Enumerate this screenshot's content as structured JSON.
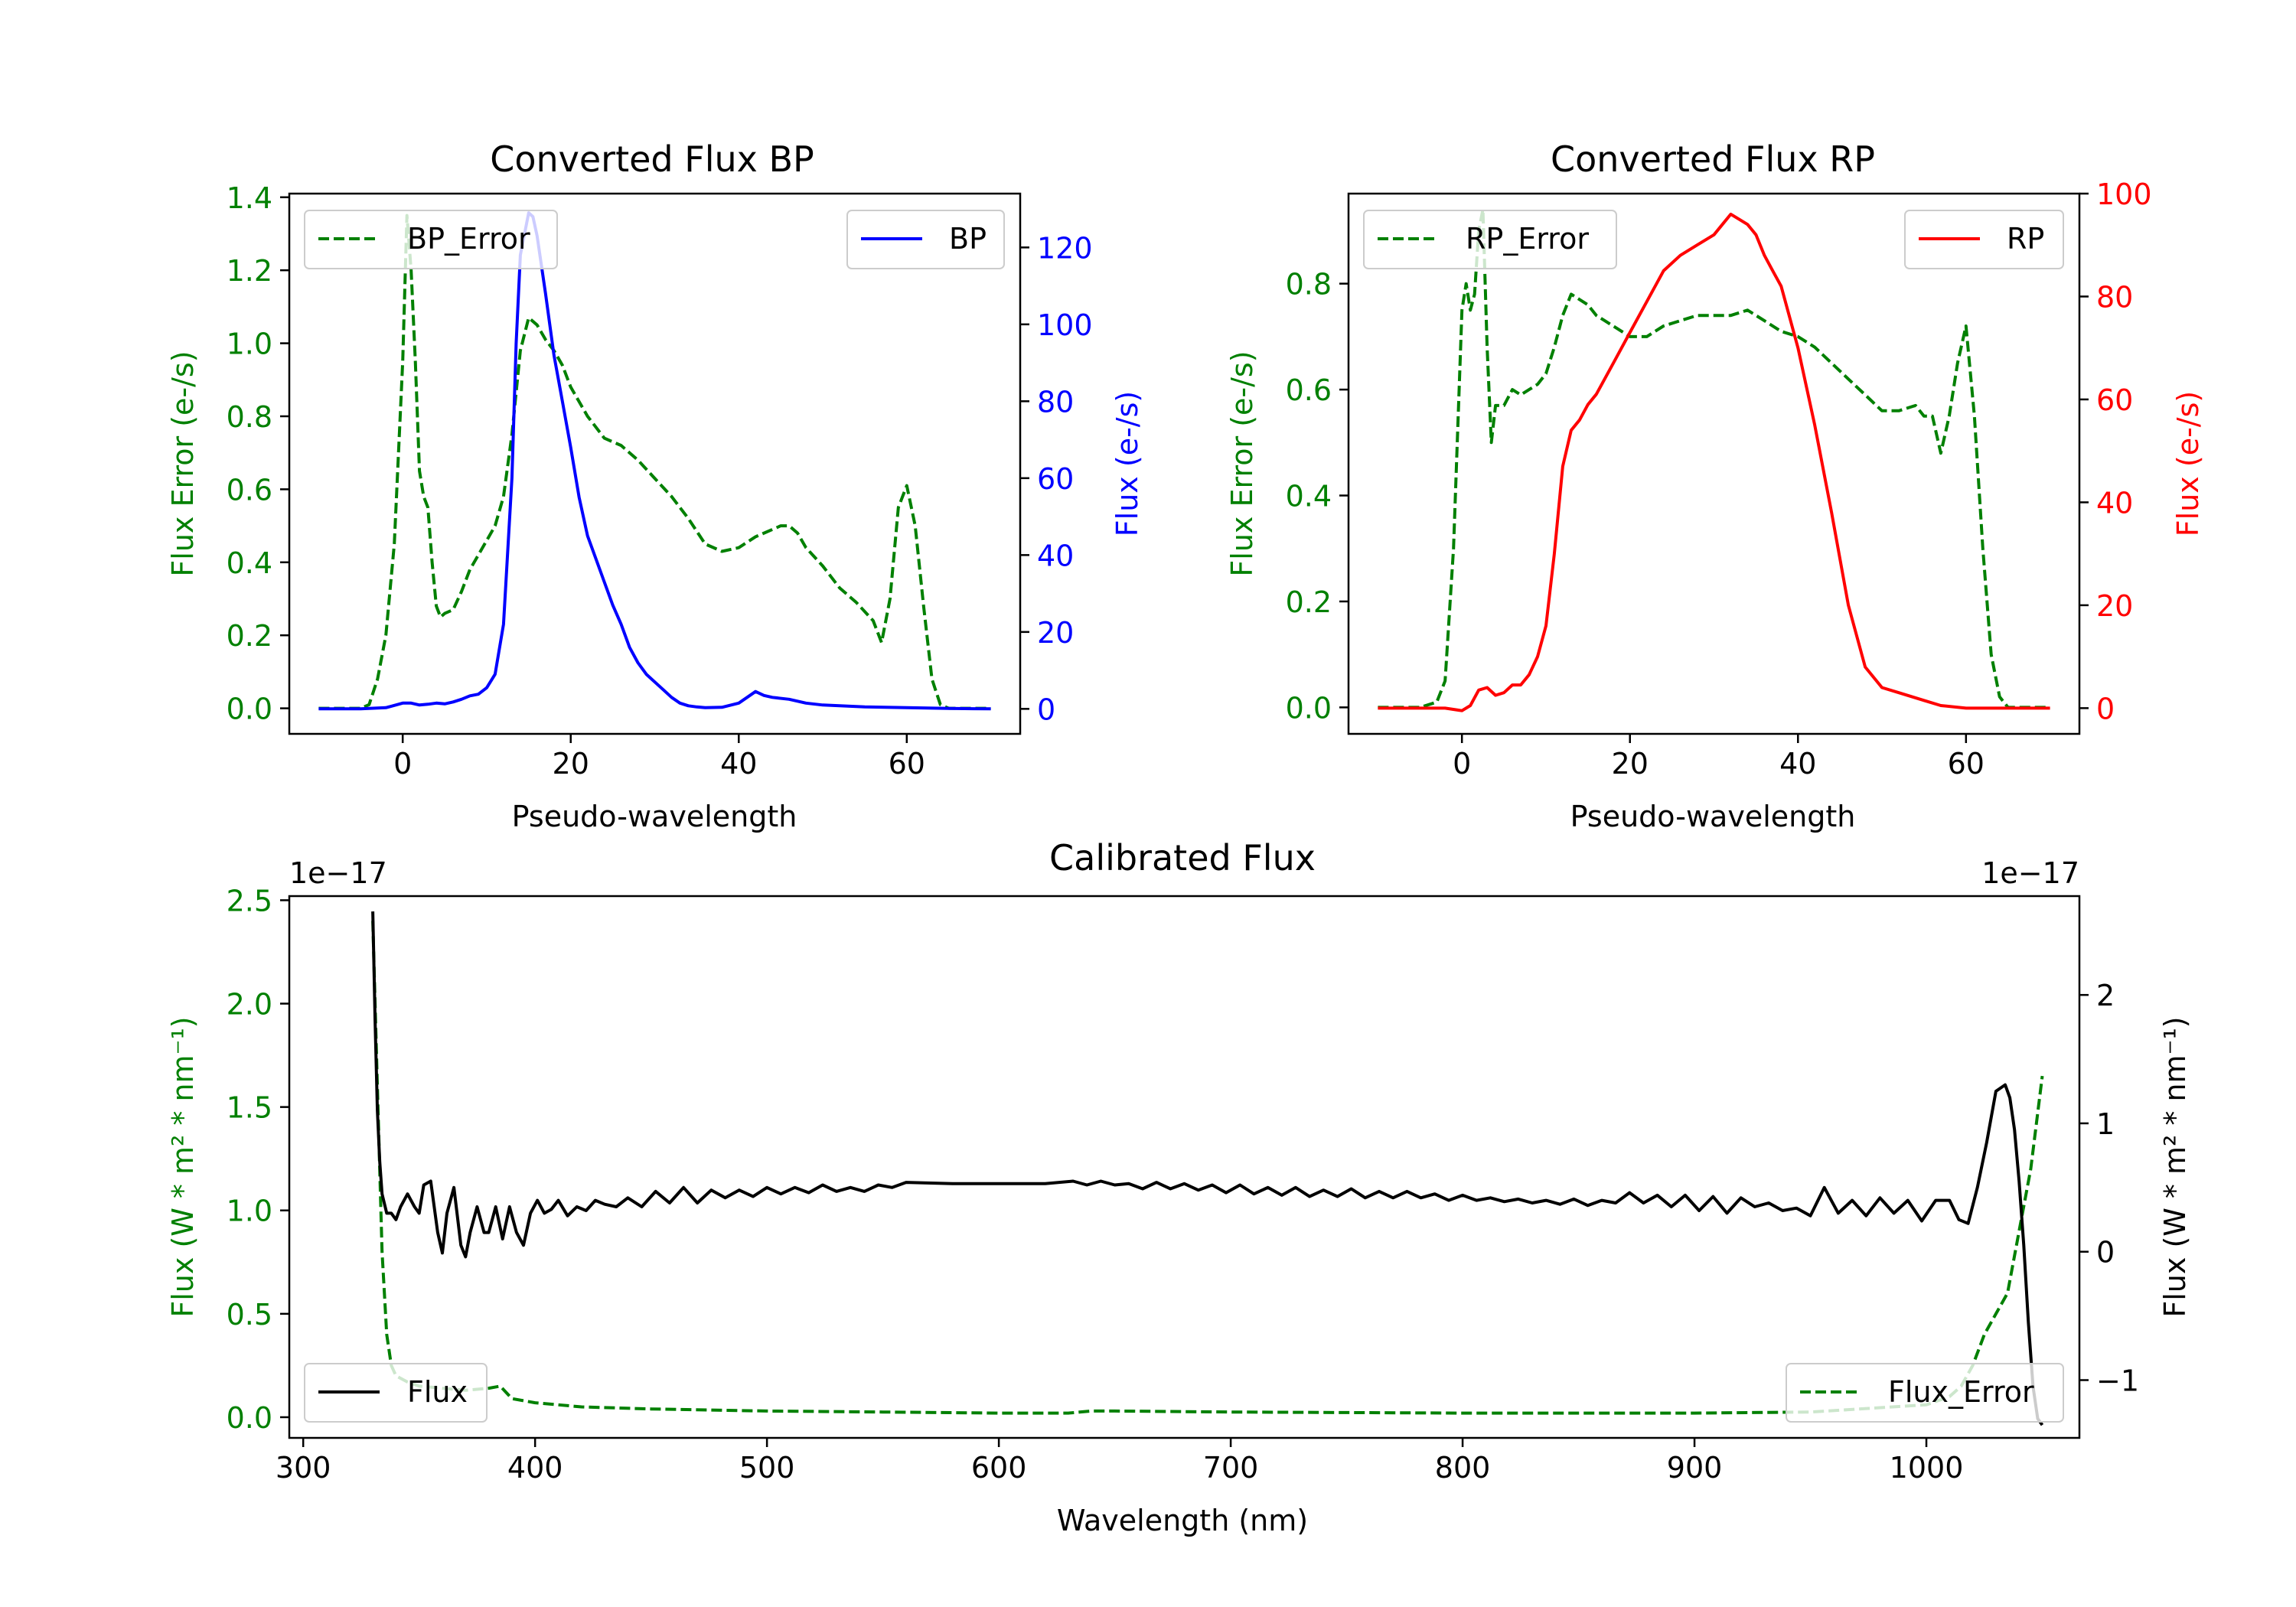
{
  "chart_data": [
    {
      "type": "line",
      "title": "Converted Flux BP",
      "xlabel": "Pseudo-wavelength",
      "ylabel_left": "Flux Error (e-/s)",
      "ylabel_right": "Flux (e-/s)",
      "xlim": [
        -13.5,
        73.5
      ],
      "ylim_left": [
        -0.07,
        1.41
      ],
      "ylim_right": [
        -6.5,
        134
      ],
      "xticks": [
        0,
        20,
        40,
        60
      ],
      "yticks_left": [
        "0.0",
        "0.2",
        "0.4",
        "0.6",
        "0.8",
        "1.0",
        "1.2",
        "1.4"
      ],
      "yticks_right": [
        "0",
        "20",
        "40",
        "60",
        "80",
        "100",
        "120"
      ],
      "legend_left": "BP_Error",
      "legend_right": "BP",
      "series": [
        {
          "name": "BP_Error",
          "axis": "left",
          "color": "#008000",
          "dash": "dashed",
          "x": [
            -10,
            -5,
            -4,
            -3,
            -2,
            -1,
            0,
            0.5,
            1,
            1.5,
            2,
            2.5,
            3,
            3.5,
            4,
            4.5,
            5,
            6,
            7,
            8,
            9,
            10,
            11,
            12,
            13,
            14,
            15,
            16,
            17,
            18,
            19,
            20,
            21,
            22,
            23,
            24,
            25,
            26,
            27,
            28,
            30,
            32,
            34,
            36,
            38,
            40,
            42,
            44,
            45,
            46,
            47,
            48,
            50,
            52,
            54,
            56,
            57,
            58,
            59,
            60,
            61,
            62,
            63,
            64,
            65,
            70
          ],
          "y": [
            0,
            0,
            0.01,
            0.08,
            0.2,
            0.45,
            0.95,
            1.35,
            1.2,
            0.95,
            0.65,
            0.58,
            0.55,
            0.4,
            0.28,
            0.25,
            0.26,
            0.27,
            0.32,
            0.38,
            0.42,
            0.46,
            0.5,
            0.58,
            0.75,
            0.98,
            1.07,
            1.05,
            1.01,
            0.98,
            0.94,
            0.88,
            0.84,
            0.8,
            0.77,
            0.74,
            0.73,
            0.72,
            0.7,
            0.68,
            0.63,
            0.58,
            0.52,
            0.45,
            0.43,
            0.44,
            0.47,
            0.49,
            0.5,
            0.5,
            0.48,
            0.44,
            0.39,
            0.33,
            0.29,
            0.24,
            0.18,
            0.3,
            0.55,
            0.61,
            0.5,
            0.28,
            0.08,
            0.01,
            0,
            0
          ]
        },
        {
          "name": "BP",
          "axis": "right",
          "color": "#0000ff",
          "dash": "solid",
          "x": [
            -10,
            -5,
            -2,
            0,
            1,
            2,
            3,
            4,
            5,
            6,
            7,
            8,
            9,
            10,
            11,
            12,
            13,
            13.5,
            14,
            15,
            15.5,
            16,
            17,
            18,
            19,
            20,
            21,
            22,
            23,
            24,
            25,
            26,
            27,
            28,
            29,
            30,
            31,
            32,
            33,
            34,
            35,
            36,
            38,
            40,
            41,
            42,
            43,
            44,
            46,
            48,
            50,
            55,
            60,
            65,
            70
          ],
          "y": [
            0,
            0,
            0.3,
            1.5,
            1.5,
            1,
            1.2,
            1.5,
            1.3,
            1.8,
            2.5,
            3.4,
            3.8,
            5.5,
            9,
            22,
            60,
            95,
            118,
            129,
            128,
            123,
            108,
            92,
            80,
            68,
            55,
            45,
            39,
            33,
            27,
            22,
            16,
            12,
            9,
            7,
            5,
            3,
            1.5,
            0.8,
            0.5,
            0.3,
            0.4,
            1.5,
            3,
            4.5,
            3.5,
            3,
            2.5,
            1.5,
            1,
            0.5,
            0.3,
            0.1,
            0
          ]
        }
      ]
    },
    {
      "type": "line",
      "title": "Converted Flux RP",
      "xlabel": "Pseudo-wavelength",
      "ylabel_left": "Flux Error (e-/s)",
      "ylabel_right": "Flux (e-/s)",
      "xlim": [
        -13.5,
        73.5
      ],
      "ylim_left": [
        -0.05,
        0.97
      ],
      "ylim_right": [
        -5,
        100
      ],
      "xticks": [
        0,
        20,
        40,
        60
      ],
      "yticks_left": [
        "0.0",
        "0.2",
        "0.4",
        "0.6",
        "0.8"
      ],
      "yticks_right": [
        "0",
        "20",
        "40",
        "60",
        "80",
        "100"
      ],
      "legend_left": "RP_Error",
      "legend_right": "RP",
      "series": [
        {
          "name": "RP_Error",
          "axis": "left",
          "color": "#008000",
          "dash": "dashed",
          "x": [
            -10,
            -5,
            -3,
            -2,
            -1,
            0,
            0.5,
            1,
            1.5,
            2,
            2.5,
            3,
            3.5,
            4,
            5,
            6,
            7,
            8,
            9,
            10,
            11,
            12,
            13,
            14,
            15,
            16,
            17,
            18,
            20,
            22,
            24,
            26,
            28,
            30,
            32,
            34,
            36,
            38,
            40,
            42,
            44,
            46,
            48,
            50,
            52,
            54,
            55,
            56,
            57,
            58,
            59,
            60,
            61,
            62,
            63,
            64,
            65,
            70
          ],
          "y": [
            0,
            0,
            0.01,
            0.05,
            0.3,
            0.75,
            0.8,
            0.75,
            0.78,
            0.9,
            0.94,
            0.68,
            0.5,
            0.57,
            0.57,
            0.6,
            0.59,
            0.6,
            0.61,
            0.63,
            0.68,
            0.74,
            0.78,
            0.77,
            0.76,
            0.74,
            0.73,
            0.72,
            0.7,
            0.7,
            0.72,
            0.73,
            0.74,
            0.74,
            0.74,
            0.75,
            0.73,
            0.71,
            0.7,
            0.68,
            0.65,
            0.62,
            0.59,
            0.56,
            0.56,
            0.57,
            0.55,
            0.55,
            0.48,
            0.55,
            0.65,
            0.72,
            0.55,
            0.3,
            0.1,
            0.02,
            0,
            0
          ]
        },
        {
          "name": "RP",
          "axis": "right",
          "color": "#ff0000",
          "dash": "solid",
          "x": [
            -10,
            -5,
            -2,
            0,
            1,
            2,
            3,
            4,
            5,
            6,
            7,
            8,
            9,
            10,
            11,
            12,
            13,
            14,
            15,
            16,
            18,
            20,
            22,
            24,
            26,
            28,
            30,
            31,
            32,
            33,
            34,
            35,
            36,
            37,
            38,
            40,
            42,
            44,
            46,
            48,
            50,
            52,
            55,
            57,
            60,
            65,
            70
          ],
          "y": [
            0,
            0,
            0,
            -0.5,
            0.5,
            3.5,
            4,
            2.5,
            3,
            4.5,
            4.5,
            6.5,
            10,
            16,
            30,
            47,
            54,
            56,
            59,
            61,
            67,
            73,
            79,
            85,
            88,
            90,
            92,
            94,
            96,
            95,
            94,
            92,
            88,
            85,
            82,
            70,
            55,
            38,
            20,
            8,
            4,
            3,
            1.5,
            0.5,
            0,
            0,
            0
          ]
        }
      ]
    },
    {
      "type": "line",
      "title": "Calibrated Flux",
      "xlabel": "Wavelength (nm)",
      "ylabel_left": "Flux (W * m² * nm⁻¹)",
      "ylabel_right": "Flux (W * m² * nm⁻¹)",
      "scale_note_left": "1e−17",
      "scale_note_right": "1e−17",
      "xlim": [
        294,
        1066
      ],
      "ylim_left": [
        -0.1,
        2.52
      ],
      "ylim_right": [
        -1.45,
        2.77
      ],
      "xticks": [
        300,
        400,
        500,
        600,
        700,
        800,
        900,
        1000
      ],
      "yticks_left": [
        "0.0",
        "0.5",
        "1.0",
        "1.5",
        "2.0",
        "2.5"
      ],
      "yticks_right": [
        "−1",
        "0",
        "1",
        "2"
      ],
      "legend_left": "Flux",
      "legend_right": "Flux_Error",
      "series": [
        {
          "name": "Flux_Error",
          "axis": "left",
          "color": "#008000",
          "dash": "dashed",
          "x": [
            330,
            332,
            334,
            336,
            338,
            340,
            345,
            350,
            360,
            370,
            380,
            385,
            390,
            400,
            420,
            450,
            500,
            550,
            600,
            630,
            640,
            650,
            700,
            800,
            900,
            950,
            1000,
            1010,
            1015,
            1020,
            1025,
            1030,
            1035,
            1040,
            1045,
            1050
          ],
          "y": [
            2.4,
            1.6,
            0.8,
            0.4,
            0.25,
            0.2,
            0.17,
            0.15,
            0.14,
            0.13,
            0.14,
            0.15,
            0.09,
            0.07,
            0.05,
            0.04,
            0.03,
            0.025,
            0.02,
            0.02,
            0.03,
            0.03,
            0.025,
            0.02,
            0.02,
            0.025,
            0.06,
            0.1,
            0.15,
            0.25,
            0.4,
            0.5,
            0.6,
            0.9,
            1.2,
            1.65
          ]
        },
        {
          "name": "Flux",
          "axis": "right",
          "color": "#000000",
          "dash": "solid",
          "x": [
            330,
            331,
            332,
            333,
            334,
            336,
            338,
            340,
            342,
            345,
            348,
            350,
            352,
            355,
            358,
            360,
            362,
            365,
            368,
            370,
            372,
            375,
            378,
            380,
            383,
            386,
            389,
            392,
            395,
            398,
            401,
            404,
            407,
            410,
            414,
            418,
            422,
            426,
            430,
            435,
            440,
            446,
            452,
            458,
            464,
            470,
            476,
            482,
            488,
            494,
            500,
            506,
            512,
            518,
            524,
            530,
            536,
            542,
            548,
            554,
            560,
            580,
            600,
            620,
            632,
            638,
            644,
            650,
            656,
            662,
            668,
            674,
            680,
            686,
            692,
            698,
            704,
            710,
            716,
            722,
            728,
            734,
            740,
            746,
            752,
            758,
            764,
            770,
            776,
            782,
            788,
            794,
            800,
            806,
            812,
            818,
            824,
            830,
            836,
            842,
            848,
            854,
            860,
            866,
            872,
            878,
            884,
            890,
            896,
            902,
            908,
            914,
            920,
            926,
            932,
            938,
            944,
            950,
            956,
            962,
            968,
            974,
            980,
            986,
            992,
            998,
            1004,
            1010,
            1014,
            1018,
            1022,
            1026,
            1030,
            1034,
            1036,
            1038,
            1040,
            1042,
            1044,
            1046,
            1048,
            1050
          ],
          "y": [
            2.65,
            1.8,
            1.1,
            0.7,
            0.45,
            0.3,
            0.3,
            0.25,
            0.35,
            0.45,
            0.35,
            0.3,
            0.52,
            0.55,
            0.15,
            -0.01,
            0.3,
            0.5,
            0.05,
            -0.04,
            0.15,
            0.35,
            0.15,
            0.15,
            0.35,
            0.1,
            0.35,
            0.15,
            0.05,
            0.3,
            0.4,
            0.3,
            0.33,
            0.4,
            0.28,
            0.35,
            0.32,
            0.4,
            0.37,
            0.35,
            0.42,
            0.35,
            0.47,
            0.38,
            0.5,
            0.38,
            0.48,
            0.42,
            0.48,
            0.43,
            0.5,
            0.45,
            0.5,
            0.46,
            0.52,
            0.47,
            0.5,
            0.47,
            0.52,
            0.5,
            0.54,
            0.53,
            0.53,
            0.53,
            0.55,
            0.52,
            0.55,
            0.52,
            0.53,
            0.49,
            0.54,
            0.49,
            0.53,
            0.48,
            0.52,
            0.46,
            0.52,
            0.45,
            0.5,
            0.44,
            0.5,
            0.43,
            0.48,
            0.43,
            0.49,
            0.42,
            0.47,
            0.42,
            0.47,
            0.42,
            0.45,
            0.4,
            0.44,
            0.4,
            0.42,
            0.39,
            0.41,
            0.38,
            0.4,
            0.37,
            0.41,
            0.36,
            0.4,
            0.38,
            0.46,
            0.38,
            0.44,
            0.35,
            0.44,
            0.32,
            0.43,
            0.3,
            0.42,
            0.35,
            0.38,
            0.32,
            0.34,
            0.28,
            0.5,
            0.3,
            0.4,
            0.28,
            0.42,
            0.3,
            0.4,
            0.24,
            0.4,
            0.4,
            0.25,
            0.22,
            0.5,
            0.85,
            1.25,
            1.3,
            1.2,
            0.95,
            0.55,
            0.05,
            -0.55,
            -1.05,
            -1.3,
            -1.35
          ]
        }
      ]
    }
  ]
}
